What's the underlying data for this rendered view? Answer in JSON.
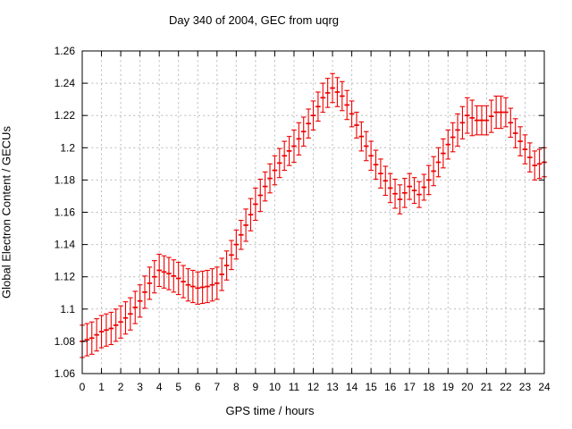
{
  "page": {
    "background": "#ffffff"
  },
  "chart": {
    "title": "Day 340 of 2004, GEC from uqrg",
    "xlabel": "GPS time / hours",
    "ylabel": "Global Electron Content / GECUs",
    "series_color": "#ee0000",
    "grid_color": "#b9b9b9",
    "axis_color": "#000000",
    "x_tick_labels": [
      "0",
      "1",
      "2",
      "3",
      "4",
      "5",
      "6",
      "7",
      "8",
      "9",
      "10",
      "11",
      "12",
      "13",
      "14",
      "15",
      "16",
      "17",
      "18",
      "19",
      "20",
      "21",
      "22",
      "23",
      "24"
    ],
    "y_tick_labels": [
      "1.06",
      "1.08",
      "1.1",
      "1.12",
      "1.14",
      "1.16",
      "1.18",
      "1.2",
      "1.22",
      "1.24",
      "1.26"
    ]
  },
  "chart_data": {
    "type": "scatter",
    "style": "points-with-errorbars",
    "title": "Day 340 of 2004, GEC from uqrg",
    "xlabel": "GPS time / hours",
    "ylabel": "Global Electron Content / GECUs",
    "xlim": [
      0,
      24
    ],
    "ylim": [
      1.06,
      1.26
    ],
    "x_tick_step": 1,
    "y_tick_step": 0.02,
    "grid": true,
    "legend_position": "none",
    "sampling_hours": 0.25,
    "x": [
      0,
      0.25,
      0.5,
      0.75,
      1,
      1.25,
      1.5,
      1.75,
      2,
      2.25,
      2.5,
      2.75,
      3,
      3.25,
      3.5,
      3.75,
      4,
      4.25,
      4.5,
      4.75,
      5,
      5.25,
      5.5,
      5.75,
      6,
      6.25,
      6.5,
      6.75,
      7,
      7.25,
      7.5,
      7.75,
      8,
      8.25,
      8.5,
      8.75,
      9,
      9.25,
      9.5,
      9.75,
      10,
      10.25,
      10.5,
      10.75,
      11,
      11.25,
      11.5,
      11.75,
      12,
      12.25,
      12.5,
      12.75,
      13,
      13.25,
      13.5,
      13.75,
      14,
      14.25,
      14.5,
      14.75,
      15,
      15.25,
      15.5,
      15.75,
      16,
      16.25,
      16.5,
      16.75,
      17,
      17.25,
      17.5,
      17.75,
      18,
      18.25,
      18.5,
      18.75,
      19,
      19.25,
      19.5,
      19.75,
      20,
      20.25,
      20.5,
      20.75,
      21,
      21.25,
      21.5,
      21.75,
      22,
      22.25,
      22.5,
      22.75,
      23,
      23.25,
      23.5,
      23.75,
      24
    ],
    "y": [
      1.08,
      1.081,
      1.082,
      1.084,
      1.086,
      1.087,
      1.088,
      1.09,
      1.092,
      1.0945,
      1.097,
      1.101,
      1.105,
      1.1105,
      1.116,
      1.12,
      1.124,
      1.123,
      1.122,
      1.1205,
      1.119,
      1.117,
      1.115,
      1.114,
      1.113,
      1.1135,
      1.114,
      1.115,
      1.116,
      1.1215,
      1.127,
      1.1335,
      1.14,
      1.146,
      1.152,
      1.1585,
      1.165,
      1.1705,
      1.176,
      1.181,
      1.186,
      1.1905,
      1.195,
      1.198,
      1.201,
      1.2055,
      1.21,
      1.215,
      1.22,
      1.2255,
      1.231,
      1.234,
      1.237,
      1.2345,
      1.232,
      1.2265,
      1.221,
      1.214,
      1.207,
      1.201,
      1.195,
      1.1895,
      1.184,
      1.1795,
      1.175,
      1.1715,
      1.168,
      1.172,
      1.176,
      1.1735,
      1.171,
      1.1755,
      1.18,
      1.1855,
      1.191,
      1.1965,
      1.202,
      1.2065,
      1.211,
      1.2155,
      1.22,
      1.2185,
      1.217,
      1.217,
      1.217,
      1.2195,
      1.222,
      1.222,
      1.222,
      1.2155,
      1.209,
      1.204,
      1.199,
      1.194,
      1.189,
      1.19,
      1.191
    ],
    "yerr": [
      0.01,
      0.01,
      0.01,
      0.01,
      0.01,
      0.01,
      0.01,
      0.01,
      0.01,
      0.01,
      0.01,
      0.01,
      0.01,
      0.01,
      0.01,
      0.01,
      0.01,
      0.01,
      0.01,
      0.01,
      0.01,
      0.01,
      0.01,
      0.01,
      0.01,
      0.01,
      0.01,
      0.01,
      0.01,
      0.01,
      0.009,
      0.009,
      0.009,
      0.009,
      0.01,
      0.01,
      0.01,
      0.01,
      0.009,
      0.009,
      0.009,
      0.009,
      0.009,
      0.009,
      0.01,
      0.01,
      0.009,
      0.009,
      0.009,
      0.009,
      0.009,
      0.009,
      0.009,
      0.009,
      0.009,
      0.009,
      0.008,
      0.008,
      0.009,
      0.009,
      0.009,
      0.009,
      0.009,
      0.009,
      0.009,
      0.009,
      0.009,
      0.009,
      0.008,
      0.008,
      0.008,
      0.008,
      0.009,
      0.009,
      0.009,
      0.009,
      0.009,
      0.009,
      0.01,
      0.01,
      0.011,
      0.011,
      0.009,
      0.009,
      0.009,
      0.01,
      0.01,
      0.01,
      0.009,
      0.009,
      0.009,
      0.009,
      0.009,
      0.009,
      0.009,
      0.009,
      0.009
    ]
  }
}
